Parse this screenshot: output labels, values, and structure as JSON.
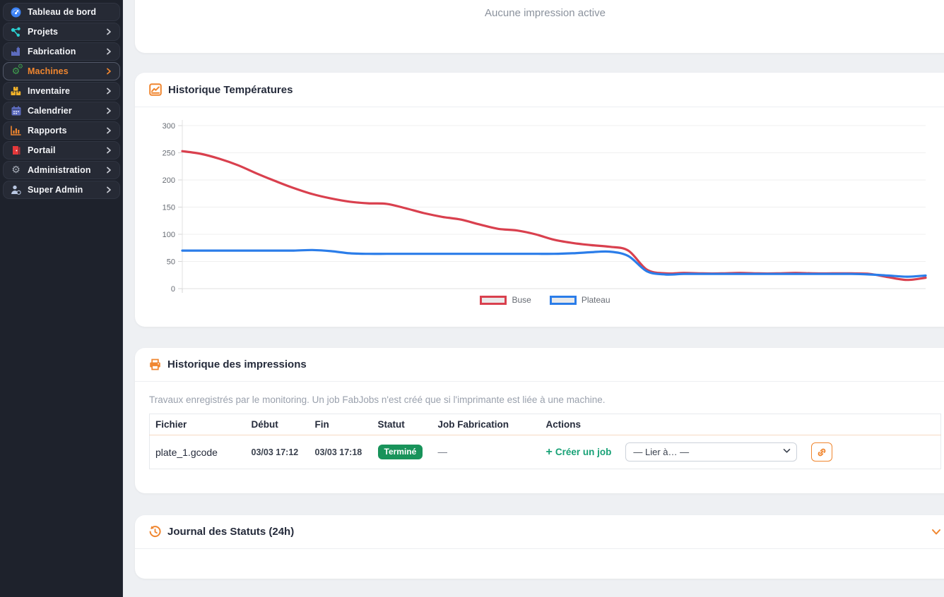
{
  "sidebar": {
    "items": [
      {
        "label": "Tableau de bord",
        "icon": "gauge-icon",
        "icon_color": "#3b82f6",
        "active": false,
        "chevron": false
      },
      {
        "label": "Projets",
        "icon": "sitemap-icon",
        "icon_color": "#2bcfd0",
        "active": false,
        "chevron": true
      },
      {
        "label": "Fabrication",
        "icon": "factory-icon",
        "icon_color": "#5d6cc0",
        "active": false,
        "chevron": true
      },
      {
        "label": "Machines",
        "icon": "gears-icon",
        "icon_color": "#3fa04e",
        "active": true,
        "chevron": true
      },
      {
        "label": "Inventaire",
        "icon": "boxes-icon",
        "icon_color": "#f2b32a",
        "active": false,
        "chevron": true
      },
      {
        "label": "Calendrier",
        "icon": "calendar-icon",
        "icon_color": "#5d6cc0",
        "active": false,
        "chevron": true
      },
      {
        "label": "Rapports",
        "icon": "bar-chart-icon",
        "icon_color": "#f0862f",
        "active": false,
        "chevron": true
      },
      {
        "label": "Portail",
        "icon": "door-icon",
        "icon_color": "#e5383b",
        "active": false,
        "chevron": true
      },
      {
        "label": "Administration",
        "icon": "gear-icon",
        "icon_color": "#a7adb8",
        "active": false,
        "chevron": true
      },
      {
        "label": "Super Admin",
        "icon": "user-shield-icon",
        "icon_color": "#b9c7e2",
        "active": false,
        "chevron": true
      }
    ],
    "active_color": "#f0862f"
  },
  "active_print_card": {
    "empty_message": "Aucune impression active"
  },
  "temperature_card": {
    "title": "Historique Températures"
  },
  "chart_data": {
    "type": "line",
    "title": "Historique Températures",
    "ylim": [
      0,
      300
    ],
    "yticks": [
      0,
      50,
      100,
      150,
      200,
      250,
      300
    ],
    "x_axis_labels_visible": false,
    "grid": "horizontal",
    "legend_position": "bottom",
    "series": [
      {
        "name": "Buse",
        "color": "#d9404e",
        "values": [
          253,
          248,
          239,
          227,
          212,
          198,
          185,
          174,
          166,
          160,
          157,
          156,
          148,
          139,
          132,
          127,
          118,
          110,
          107,
          100,
          90,
          84,
          80,
          77,
          70,
          35,
          28,
          29,
          28,
          28,
          29,
          28,
          28,
          29,
          28,
          28,
          28,
          27,
          21,
          16,
          20
        ]
      },
      {
        "name": "Plateau",
        "color": "#2b7de9",
        "values": [
          70,
          70,
          70,
          70,
          70,
          70,
          70,
          71,
          69,
          65,
          64,
          64,
          64,
          64,
          64,
          64,
          64,
          64,
          64,
          64,
          64,
          65,
          67,
          68,
          60,
          32,
          26,
          27,
          27,
          27,
          27,
          27,
          27,
          27,
          27,
          27,
          27,
          26,
          24,
          22,
          24
        ]
      }
    ]
  },
  "print_history_card": {
    "title": "Historique des impressions",
    "description": "Travaux enregistrés par le monitoring. Un job FabJobs n'est créé que si l'imprimante est liée à une machine.",
    "table": {
      "headers": [
        "Fichier",
        "Début",
        "Fin",
        "Statut",
        "Job Fabrication",
        "Actions"
      ],
      "rows": [
        {
          "fichier": "plate_1.gcode",
          "debut": "03/03 17:12",
          "fin": "03/03 17:18",
          "statut": "Terminé",
          "job_fabrication": "—",
          "create_job_label": "Créer un job",
          "link_select_value": "— Lier à… —"
        }
      ]
    }
  },
  "status_journal_card": {
    "title": "Journal des Statuts (24h)"
  },
  "colors": {
    "accent_orange": "#f0862f",
    "success_badge": "#18935a",
    "link_green": "#19a277",
    "sidebar_bg": "#1e222c",
    "page_bg": "#eef0f3"
  }
}
